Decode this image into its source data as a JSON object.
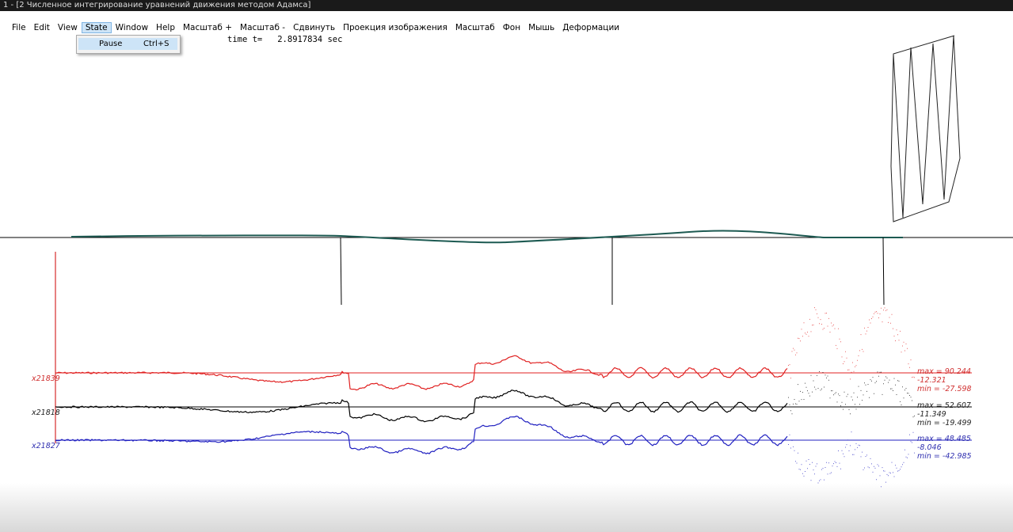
{
  "window": {
    "title": "1 - [2 Численное интегрирование уравнений движения методом Адамса]"
  },
  "menu": [
    "File",
    "Edit",
    "View",
    "State",
    "Window",
    "Help",
    "Масштаб +",
    "Масштаб -",
    "Сдвинуть",
    "Проекция изображения",
    "Масштаб",
    "Фон",
    "Мышь",
    "Деформации"
  ],
  "dropdown": {
    "item": "Pause",
    "shortcut": "Ctrl+S"
  },
  "time": {
    "label": "time t=",
    "value": "2.8917834 sec"
  },
  "traces": [
    {
      "name": "x21839",
      "max": "max = 90.244",
      "current": "-12.321",
      "min": "min = -27.598"
    },
    {
      "name": "x21818",
      "max": "max = 52.607",
      "current": "-11.349",
      "min": "min = -19.499"
    },
    {
      "name": "x21827",
      "max": "max = 48.485",
      "current": "-8.046",
      "min": "min = -42.985"
    }
  ]
}
